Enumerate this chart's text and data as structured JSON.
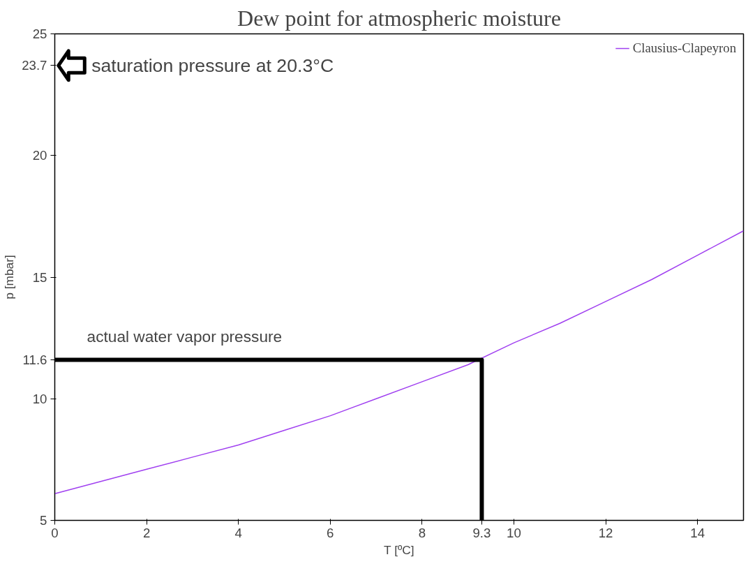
{
  "chart_data": {
    "type": "line",
    "title": "Dew point for atmospheric moisture",
    "xlabel": "T [ºC]",
    "ylabel": "p [mbar]",
    "xlim": [
      0,
      15
    ],
    "ylim": [
      5,
      25
    ],
    "xticks": [
      0,
      2,
      4,
      6,
      8,
      9.3,
      10,
      12,
      14
    ],
    "yticks": [
      5,
      10,
      11.6,
      15,
      20,
      23.7,
      25
    ],
    "grid": false,
    "legend": "top right",
    "marker": "none",
    "line_style": "solid",
    "series": [
      {
        "name": "Clausius-Clapeyron",
        "color": "#a040f0",
        "x": [
          0,
          1,
          2,
          3,
          4,
          5,
          6,
          7,
          8,
          9,
          10,
          11,
          12,
          13,
          14,
          15
        ],
        "values": [
          6.1,
          6.6,
          7.1,
          7.6,
          8.1,
          8.7,
          9.3,
          10.0,
          10.7,
          11.4,
          12.3,
          13.1,
          14.0,
          14.9,
          15.9,
          16.9
        ]
      },
      {
        "color": "#000000",
        "x": [
          0,
          9.3,
          9.3
        ],
        "values": [
          11.6,
          11.6,
          5
        ]
      }
    ],
    "annotations": [
      "actual water vapor pressure",
      "saturation pressure at 20.3°C"
    ]
  }
}
